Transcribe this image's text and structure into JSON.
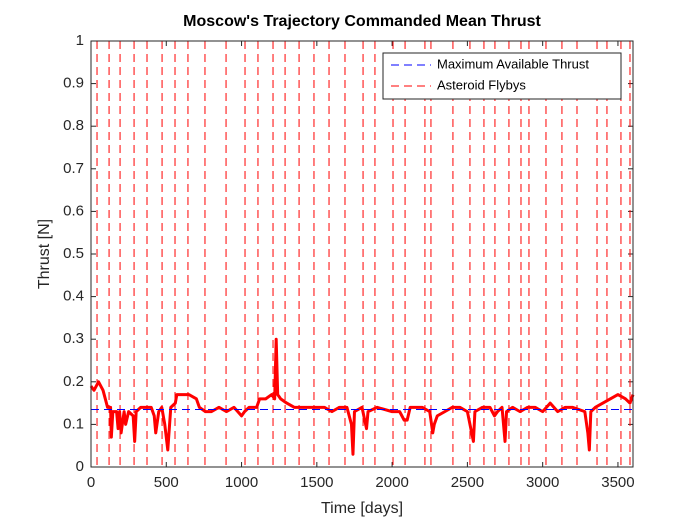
{
  "chart_data": {
    "type": "line",
    "title": "Moscow's Trajectory Commanded Mean Thrust",
    "xlabel": "Time [days]",
    "ylabel": "Thrust [N]",
    "xlim": [
      0,
      3600
    ],
    "xticks": [
      0,
      500,
      1000,
      1500,
      2000,
      2500,
      3000,
      3500
    ],
    "ylim": [
      0,
      1
    ],
    "yticks": [
      0,
      0.1,
      0.2,
      0.3,
      0.4,
      0.5,
      0.6,
      0.7,
      0.8,
      0.9,
      1
    ],
    "legend": "upper right",
    "series": [
      {
        "color": "#ff0000",
        "style": "solid",
        "x": [
          0,
          20,
          50,
          80,
          110,
          130,
          135,
          145,
          170,
          180,
          190,
          200,
          220,
          230,
          250,
          280,
          290,
          300,
          330,
          400,
          420,
          430,
          450,
          470,
          490,
          510,
          530,
          560,
          570,
          650,
          700,
          720,
          760,
          800,
          850,
          900,
          950,
          1000,
          1020,
          1050,
          1100,
          1120,
          1160,
          1200,
          1220,
          1230,
          1240,
          1260,
          1300,
          1350,
          1400,
          1450,
          1500,
          1550,
          1600,
          1650,
          1700,
          1730,
          1740,
          1750,
          1800,
          1830,
          1840,
          1900,
          2000,
          2050,
          2080,
          2100,
          2120,
          2200,
          2250,
          2270,
          2280,
          2300,
          2350,
          2400,
          2450,
          2500,
          2540,
          2550,
          2600,
          2650,
          2680,
          2700,
          2730,
          2750,
          2760,
          2800,
          2850,
          2900,
          2950,
          3000,
          3050,
          3100,
          3150,
          3200,
          3280,
          3300,
          3310,
          3320,
          3350,
          3400,
          3450,
          3500,
          3550,
          3580,
          3600
        ],
        "values": [
          0.19,
          0.18,
          0.2,
          0.18,
          0.14,
          0.14,
          0.07,
          0.13,
          0.13,
          0.09,
          0.13,
          0.08,
          0.13,
          0.1,
          0.13,
          0.12,
          0.06,
          0.13,
          0.14,
          0.14,
          0.12,
          0.08,
          0.13,
          0.14,
          0.1,
          0.04,
          0.14,
          0.15,
          0.17,
          0.17,
          0.16,
          0.14,
          0.13,
          0.13,
          0.14,
          0.13,
          0.14,
          0.12,
          0.13,
          0.14,
          0.14,
          0.16,
          0.16,
          0.17,
          0.16,
          0.3,
          0.17,
          0.16,
          0.15,
          0.14,
          0.14,
          0.14,
          0.14,
          0.14,
          0.13,
          0.14,
          0.14,
          0.1,
          0.03,
          0.13,
          0.14,
          0.09,
          0.13,
          0.14,
          0.13,
          0.13,
          0.11,
          0.11,
          0.14,
          0.14,
          0.13,
          0.08,
          0.1,
          0.12,
          0.13,
          0.14,
          0.14,
          0.13,
          0.06,
          0.13,
          0.14,
          0.14,
          0.12,
          0.13,
          0.14,
          0.06,
          0.13,
          0.14,
          0.13,
          0.14,
          0.14,
          0.13,
          0.15,
          0.13,
          0.14,
          0.14,
          0.13,
          0.08,
          0.04,
          0.13,
          0.14,
          0.15,
          0.16,
          0.17,
          0.16,
          0.15,
          0.17
        ]
      },
      {
        "name": "Maximum Available Thrust",
        "color": "#0000ff",
        "style": "dashed",
        "x": [
          0,
          3600
        ],
        "values": [
          0.135,
          0.135
        ]
      },
      {
        "name": "Asteroid Flybys",
        "color": "#ff0000",
        "style": "dashed",
        "type": "vline",
        "x": [
          40,
          120,
          193,
          286,
          372,
          472,
          558,
          644,
          757,
          897,
          1023,
          1109,
          1209,
          1289,
          1382,
          1481,
          1581,
          1687,
          1807,
          1886,
          2006,
          2086,
          2218,
          2258,
          2404,
          2517,
          2610,
          2683,
          2776,
          2856,
          2909,
          3022,
          3128,
          3228,
          3361,
          3427,
          3520,
          3580
        ]
      }
    ]
  }
}
